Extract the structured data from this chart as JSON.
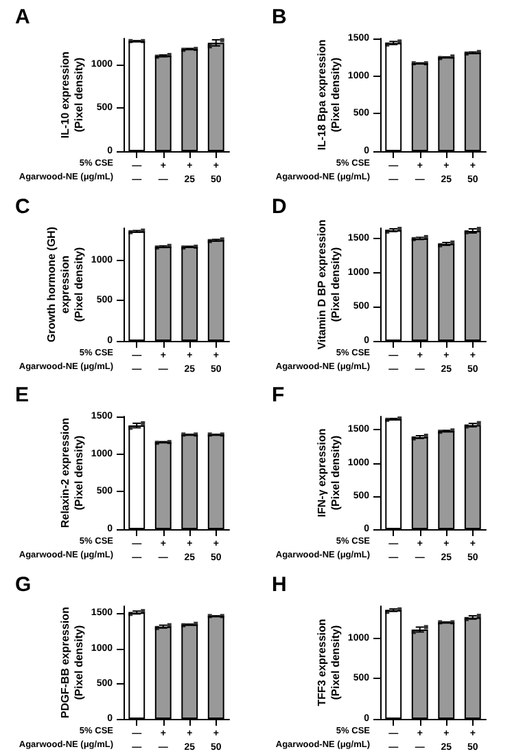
{
  "chart_data": [
    {
      "type": "bar",
      "title": "A",
      "ylabel": "IL-10 expression\n(Pixel density)",
      "categories": [
        "—\n—",
        "+\n—",
        "+\n25",
        "+\n50"
      ],
      "ylim": [
        0,
        1300
      ],
      "yticks": [
        0,
        500,
        1000
      ],
      "grid": false,
      "annotations": [
        "5% CSE",
        "Agarwood-NE (μg/mL)"
      ],
      "series": [
        {
          "values": [
            1270,
            1100,
            1180,
            1250
          ],
          "errors": [
            5,
            10,
            5,
            35
          ],
          "colors": [
            "#ffffff",
            "#999999",
            "#999999",
            "#999999"
          ]
        },
        {
          "type": "scatter",
          "marker": "square",
          "color": "#000000",
          "x": [
            "—\n—",
            "+\n—",
            "+\n25",
            "+\n50"
          ],
          "values": [
            1270,
            1090,
            1170,
            1210
          ]
        },
        {
          "type": "scatter",
          "marker": "square",
          "color": "#000000",
          "x": [
            "—\n—",
            "+\n—",
            "+\n25",
            "+\n50"
          ],
          "values": [
            1270,
            1110,
            1180,
            1280
          ]
        }
      ]
    },
    {
      "type": "bar",
      "title": "B",
      "ylabel": "IL-18 Bpa expression\n(Pixel density)",
      "categories": [
        "—\n—",
        "+\n—",
        "+\n25",
        "+\n50"
      ],
      "ylim": [
        0,
        1500
      ],
      "yticks": [
        0,
        500,
        1000,
        1500
      ],
      "grid": false,
      "annotations": [
        "5% CSE",
        "Agarwood-NE (μg/mL)"
      ],
      "series": [
        {
          "values": [
            1440,
            1170,
            1250,
            1310
          ],
          "errors": [
            20,
            5,
            5,
            10
          ],
          "colors": [
            "#ffffff",
            "#999999",
            "#999999",
            "#999999"
          ]
        },
        {
          "type": "scatter",
          "marker": "square",
          "color": "#000000",
          "x": [
            "—\n—",
            "+\n—",
            "+\n25",
            "+\n50"
          ],
          "values": [
            1420,
            1170,
            1240,
            1300
          ]
        },
        {
          "type": "scatter",
          "marker": "square",
          "color": "#000000",
          "x": [
            "—\n—",
            "+\n—",
            "+\n25",
            "+\n50"
          ],
          "values": [
            1460,
            1170,
            1260,
            1320
          ]
        }
      ]
    },
    {
      "type": "bar",
      "title": "C",
      "ylabel": "Growth hormone (GH)\nexpression\n(Pixel density)",
      "categories": [
        "—\n—",
        "+\n—",
        "+\n25",
        "+\n50"
      ],
      "ylim": [
        0,
        1400
      ],
      "yticks": [
        0,
        500,
        1000
      ],
      "grid": false,
      "annotations": [
        "5% CSE",
        "Agarwood-NE (μg/mL)"
      ],
      "series": [
        {
          "values": [
            1360,
            1170,
            1170,
            1250
          ],
          "errors": [
            10,
            10,
            5,
            10
          ],
          "colors": [
            "#ffffff",
            "#999999",
            "#999999",
            "#999999"
          ]
        },
        {
          "type": "scatter",
          "marker": "square",
          "color": "#000000",
          "x": [
            "—\n—",
            "+\n—",
            "+\n25",
            "+\n50"
          ],
          "values": [
            1350,
            1160,
            1160,
            1240
          ]
        },
        {
          "type": "scatter",
          "marker": "square",
          "color": "#000000",
          "x": [
            "—\n—",
            "+\n—",
            "+\n25",
            "+\n50"
          ],
          "values": [
            1370,
            1180,
            1170,
            1260
          ]
        }
      ]
    },
    {
      "type": "bar",
      "title": "D",
      "ylabel": "Vitamin D BP expression\n(Pixel density)",
      "categories": [
        "—\n—",
        "+\n—",
        "+\n25",
        "+\n50"
      ],
      "ylim": [
        0,
        1650
      ],
      "yticks": [
        0,
        500,
        1000,
        1500
      ],
      "grid": false,
      "annotations": [
        "5% CSE",
        "Agarwood-NE (μg/mL)"
      ],
      "series": [
        {
          "values": [
            1620,
            1500,
            1420,
            1610
          ],
          "errors": [
            20,
            15,
            20,
            30
          ],
          "colors": [
            "#ffffff",
            "#999999",
            "#999999",
            "#999999"
          ]
        },
        {
          "type": "scatter",
          "marker": "square",
          "color": "#000000",
          "x": [
            "—\n—",
            "+\n—",
            "+\n25",
            "+\n50"
          ],
          "values": [
            1600,
            1490,
            1400,
            1590
          ]
        },
        {
          "type": "scatter",
          "marker": "square",
          "color": "#000000",
          "x": [
            "—\n—",
            "+\n—",
            "+\n25",
            "+\n50"
          ],
          "values": [
            1640,
            1520,
            1440,
            1640
          ]
        }
      ]
    },
    {
      "type": "bar",
      "title": "E",
      "ylabel": "Relaxin-2 expression\n(Pixel density)",
      "categories": [
        "—\n—",
        "+\n—",
        "+\n25",
        "+\n50"
      ],
      "ylim": [
        0,
        1500
      ],
      "yticks": [
        0,
        500,
        1000,
        1500
      ],
      "grid": false,
      "annotations": [
        "5% CSE",
        "Agarwood-NE (μg/mL)"
      ],
      "series": [
        {
          "values": [
            1380,
            1160,
            1260,
            1260
          ],
          "errors": [
            30,
            5,
            3,
            3
          ],
          "colors": [
            "#ffffff",
            "#999999",
            "#999999",
            "#999999"
          ]
        },
        {
          "type": "scatter",
          "marker": "square",
          "color": "#000000",
          "x": [
            "—\n—",
            "+\n—",
            "+\n25",
            "+\n50"
          ],
          "values": [
            1350,
            1150,
            1260,
            1260
          ]
        },
        {
          "type": "scatter",
          "marker": "square",
          "color": "#000000",
          "x": [
            "—\n—",
            "+\n—",
            "+\n25",
            "+\n50"
          ],
          "values": [
            1410,
            1160,
            1260,
            1260
          ]
        }
      ]
    },
    {
      "type": "bar",
      "title": "F",
      "ylabel": "IFN-γ expression\n(Pixel density)",
      "categories": [
        "—\n—",
        "+\n—",
        "+\n25",
        "+\n50"
      ],
      "ylim": [
        0,
        1700
      ],
      "yticks": [
        0,
        500,
        1000,
        1500
      ],
      "grid": false,
      "annotations": [
        "5% CSE",
        "Agarwood-NE (μg/mL)"
      ],
      "series": [
        {
          "values": [
            1660,
            1390,
            1480,
            1570
          ],
          "errors": [
            10,
            20,
            10,
            25
          ],
          "colors": [
            "#ffffff",
            "#999999",
            "#999999",
            "#999999"
          ]
        },
        {
          "type": "scatter",
          "marker": "square",
          "color": "#000000",
          "x": [
            "—\n—",
            "+\n—",
            "+\n25",
            "+\n50"
          ],
          "values": [
            1650,
            1370,
            1470,
            1550
          ]
        },
        {
          "type": "scatter",
          "marker": "square",
          "color": "#000000",
          "x": [
            "—\n—",
            "+\n—",
            "+\n25",
            "+\n50"
          ],
          "values": [
            1670,
            1410,
            1490,
            1600
          ]
        }
      ]
    },
    {
      "type": "bar",
      "title": "G",
      "ylabel": "PDGF-BB expression\n(Pixel density)",
      "categories": [
        "—\n—",
        "+\n—",
        "+\n25",
        "+\n50"
      ],
      "ylim": [
        0,
        1600
      ],
      "yticks": [
        0,
        500,
        1000,
        1500
      ],
      "grid": false,
      "annotations": [
        "5% CSE",
        "Agarwood-NE (μg/mL)"
      ],
      "series": [
        {
          "values": [
            1510,
            1310,
            1340,
            1460
          ],
          "errors": [
            20,
            20,
            5,
            3
          ],
          "colors": [
            "#ffffff",
            "#999999",
            "#999999",
            "#999999"
          ]
        },
        {
          "type": "scatter",
          "marker": "square",
          "color": "#000000",
          "x": [
            "—\n—",
            "+\n—",
            "+\n25",
            "+\n50"
          ],
          "values": [
            1490,
            1290,
            1330,
            1460
          ]
        },
        {
          "type": "scatter",
          "marker": "square",
          "color": "#000000",
          "x": [
            "—\n—",
            "+\n—",
            "+\n25",
            "+\n50"
          ],
          "values": [
            1530,
            1330,
            1350,
            1460
          ]
        }
      ]
    },
    {
      "type": "bar",
      "title": "H",
      "ylabel": "TFF3 expression\n(Pixel density)",
      "categories": [
        "—\n—",
        "+\n—",
        "+\n25",
        "+\n50"
      ],
      "ylim": [
        0,
        1400
      ],
      "yticks": [
        0,
        500,
        1000
      ],
      "grid": false,
      "annotations": [
        "5% CSE",
        "Agarwood-NE (μg/mL)"
      ],
      "series": [
        {
          "values": [
            1350,
            1110,
            1200,
            1260
          ],
          "errors": [
            15,
            30,
            3,
            20
          ],
          "colors": [
            "#ffffff",
            "#999999",
            "#999999",
            "#999999"
          ]
        },
        {
          "type": "scatter",
          "marker": "square",
          "color": "#000000",
          "x": [
            "—\n—",
            "+\n—",
            "+\n25",
            "+\n50"
          ],
          "values": [
            1330,
            1080,
            1200,
            1240
          ]
        },
        {
          "type": "scatter",
          "marker": "square",
          "color": "#000000",
          "x": [
            "—\n—",
            "+\n—",
            "+\n25",
            "+\n50"
          ],
          "values": [
            1360,
            1140,
            1200,
            1280
          ]
        }
      ]
    }
  ]
}
